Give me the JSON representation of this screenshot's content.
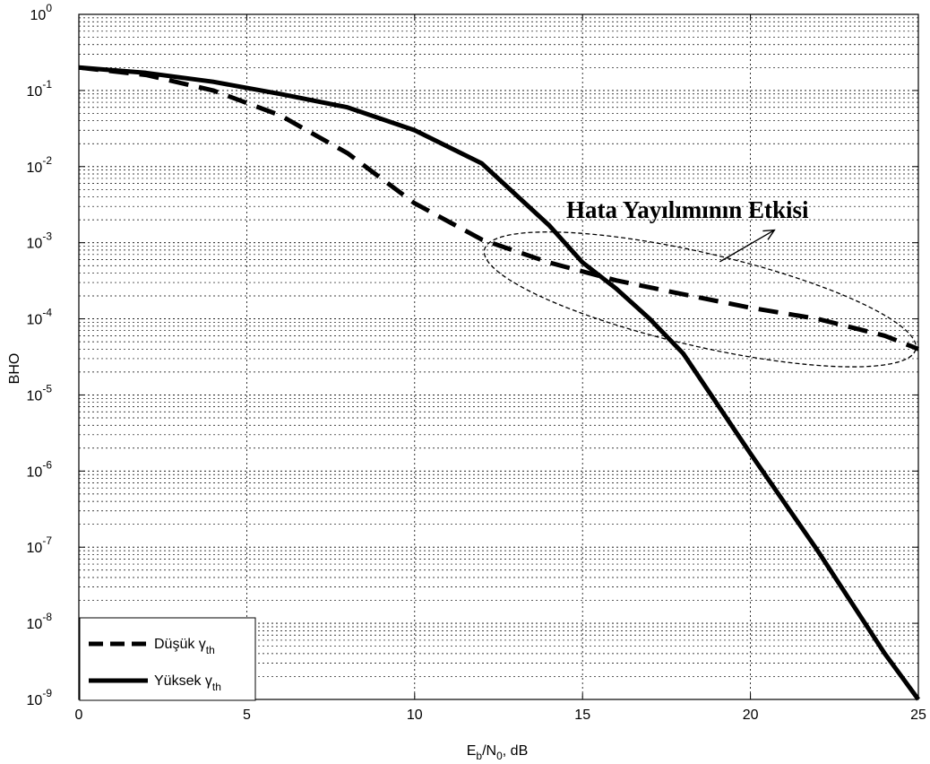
{
  "chart_data": {
    "type": "line",
    "xlabel": {
      "base": "E",
      "sub1": "b",
      "mid": "/N",
      "sub2": "0",
      "tail": ", dB"
    },
    "ylabel": "BHO",
    "xlim": [
      0,
      25
    ],
    "ylim_log10": [
      -9,
      0
    ],
    "yscale": "log",
    "grid": true,
    "x_ticks": [
      "0",
      "5",
      "10",
      "15",
      "20",
      "25"
    ],
    "y_ticks": [
      {
        "base": "10",
        "exp": "0"
      },
      {
        "base": "10",
        "exp": "-1"
      },
      {
        "base": "10",
        "exp": "-2"
      },
      {
        "base": "10",
        "exp": "-3"
      },
      {
        "base": "10",
        "exp": "-4"
      },
      {
        "base": "10",
        "exp": "-5"
      },
      {
        "base": "10",
        "exp": "-6"
      },
      {
        "base": "10",
        "exp": "-7"
      },
      {
        "base": "10",
        "exp": "-8"
      },
      {
        "base": "10",
        "exp": "-9"
      }
    ],
    "legend_position": "bottom-left",
    "series": [
      {
        "name": "Düşük γth",
        "label_main": "Düşük γ",
        "label_sub": "th",
        "style": "dashed",
        "color": "#000000",
        "x": [
          0,
          2,
          4,
          6,
          8,
          10,
          12,
          14,
          16,
          18,
          20,
          22,
          24,
          25
        ],
        "y": [
          0.2,
          0.16,
          0.1,
          0.047,
          0.015,
          0.0033,
          0.0011,
          0.00055,
          0.00032,
          0.00021,
          0.00014,
          0.0001,
          6e-05,
          4e-05
        ]
      },
      {
        "name": "Yüksek γth",
        "label_main": "Yüksek γ",
        "label_sub": "th",
        "style": "solid",
        "color": "#000000",
        "x": [
          0,
          2,
          4,
          6,
          8,
          10,
          12,
          14,
          15,
          16,
          17,
          18,
          20,
          22,
          24,
          25
        ],
        "y": [
          0.2,
          0.17,
          0.13,
          0.09,
          0.06,
          0.03,
          0.011,
          0.0017,
          0.00055,
          0.00025,
          0.0001,
          3.5e-05,
          1.7e-06,
          9e-08,
          4e-09,
          1e-09
        ]
      }
    ],
    "annotation": {
      "text": "Hata Yayılımının Etkisi",
      "ellipse_center": {
        "x": 18.5,
        "y": 0.00018
      },
      "arrow_target": {
        "x": 20.5,
        "y": 0.00095
      }
    }
  }
}
